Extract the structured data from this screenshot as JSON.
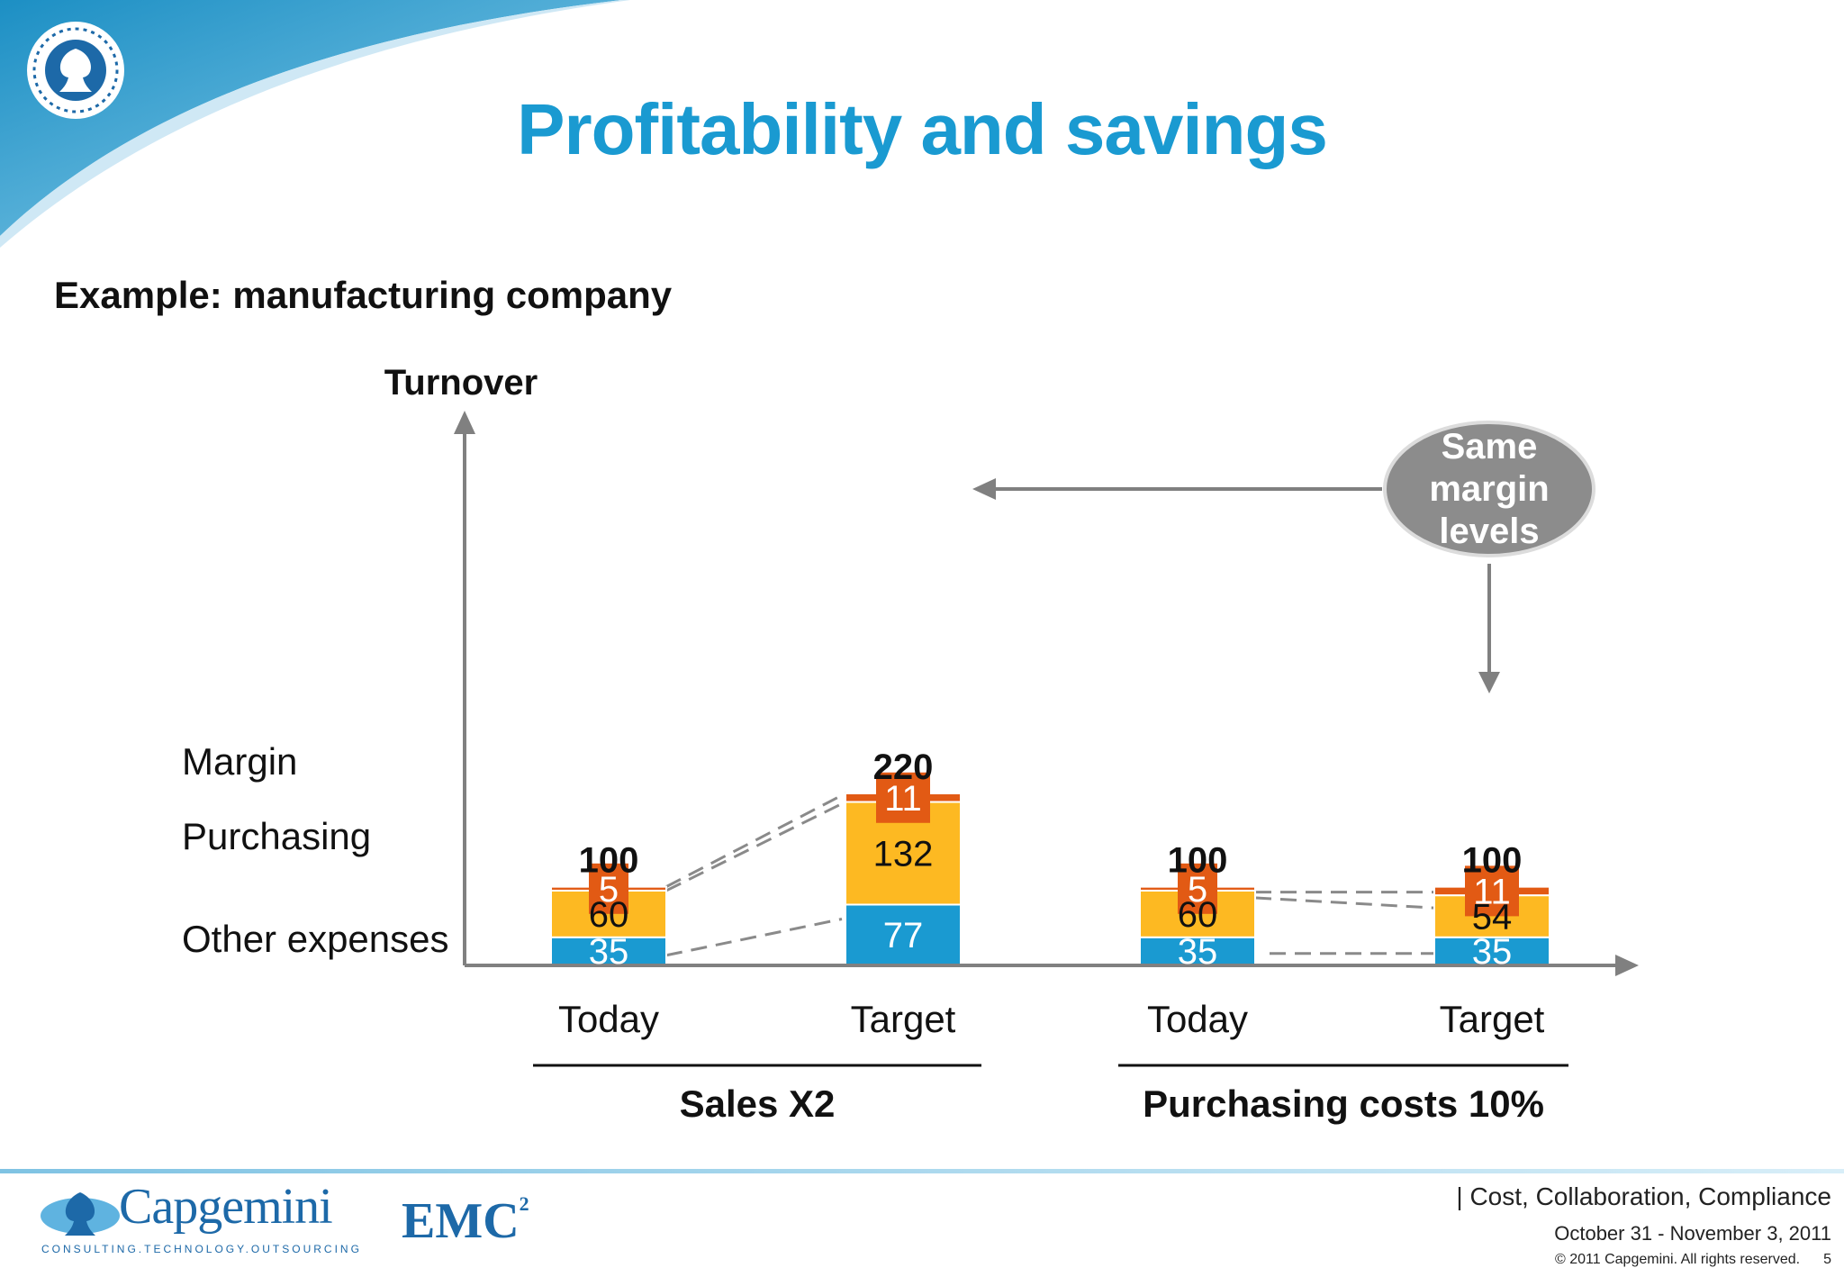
{
  "slide": {
    "title": "Profitability and savings",
    "subtitle": "Example: manufacturing company",
    "footer": {
      "topic": "| Cost, Collaboration, Compliance",
      "dates": "October 31 - November 3, 2011",
      "copyright": "© 2011 Capgemini. All rights reserved.",
      "page_number": "5"
    },
    "logos": {
      "capgemini": "Capgemini",
      "capgemini_tagline": "CONSULTING.TECHNOLOGY.OUTSOURCING",
      "emc": "EMC",
      "emc_superscript": "2"
    },
    "colors": {
      "title": "#1a9ad1",
      "other_expenses": "#1a9ad1",
      "purchasing": "#fdb922",
      "margin": "#e25a14",
      "callout": "#8c8c8c",
      "axis": "#808080"
    },
    "icons": [
      "emblem-icon",
      "capgemini-spade-icon"
    ]
  },
  "chart_data": {
    "type": "bar",
    "stacked": true,
    "ylabel": "Turnover",
    "categories": [
      "Today",
      "Target",
      "Today",
      "Target"
    ],
    "groups": [
      {
        "label": "Sales X2",
        "categories": [
          0,
          1
        ]
      },
      {
        "label": "Purchasing costs 10%",
        "categories": [
          2,
          3
        ]
      }
    ],
    "series": [
      {
        "name": "Other expenses",
        "values": [
          35,
          77,
          35,
          35
        ]
      },
      {
        "name": "Purchasing",
        "values": [
          60,
          132,
          60,
          54
        ]
      },
      {
        "name": "Margin",
        "values": [
          5,
          11,
          5,
          11
        ]
      }
    ],
    "totals": [
      "100",
      "220",
      "100",
      "100"
    ],
    "ylim": [
      0,
      245
    ],
    "grid": false,
    "legend": "left",
    "callout": {
      "text": [
        "Same",
        "margin",
        "levels"
      ]
    }
  }
}
